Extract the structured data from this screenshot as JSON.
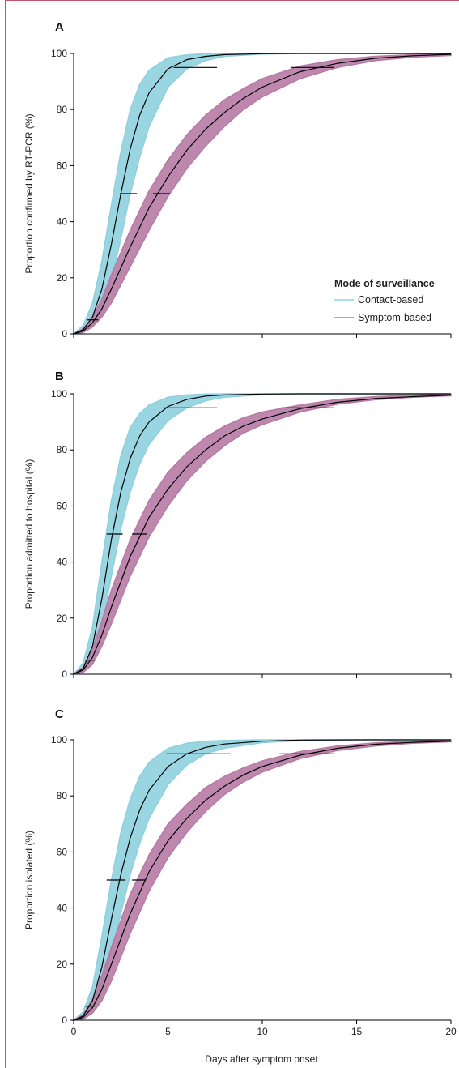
{
  "colors": {
    "contact": "#8fd0df",
    "symptom": "#b77aa4",
    "median": "#000000",
    "frame": "#c0566e"
  },
  "legend": {
    "title": "Mode of surveillance",
    "items": [
      {
        "label": "Contact-based",
        "color": "#8fd0df"
      },
      {
        "label": "Symptom-based",
        "color": "#b77aa4"
      }
    ],
    "placement": "lower-right of panel A"
  },
  "xaxis": {
    "label": "Days after symptom onset",
    "ticks": [
      "0",
      "5",
      "10",
      "15",
      "20"
    ],
    "range": [
      0,
      20
    ]
  },
  "chart_data": [
    {
      "type": "line",
      "panel_label": "A",
      "ylabel": "Proportion confirmed by RT-PCR (%)",
      "yticks": [
        "0",
        "20",
        "40",
        "60",
        "80",
        "100"
      ],
      "ylim": [
        0,
        100
      ],
      "xlim": [
        0,
        20
      ],
      "series": [
        {
          "name": "Contact-based",
          "median": {
            "x": [
              0,
              0.5,
              1,
              1.5,
              2,
              2.5,
              3,
              3.5,
              4,
              5,
              6,
              7,
              8,
              10,
              12,
              15,
              20
            ],
            "y": [
              0,
              1.5,
              6,
              16,
              32,
              50,
              66,
              78,
              86,
              94.5,
              97.8,
              99,
              99.6,
              99.9,
              100,
              100,
              100
            ]
          },
          "band_lower": [
            0,
            0.5,
            2.5,
            8,
            19,
            34,
            50,
            63,
            74,
            88,
            94.5,
            97.5,
            99,
            99.8,
            100,
            100,
            100
          ],
          "band_upper": [
            0,
            3,
            11,
            26,
            46,
            65,
            80,
            89,
            94,
            98.5,
            99.5,
            99.9,
            100,
            100,
            100,
            100,
            100
          ],
          "markers": [
            {
              "y": 5,
              "x_from": 0.7,
              "x_to": 1.3
            },
            {
              "y": 50,
              "x_from": 2.45,
              "x_to": 3.35
            },
            {
              "y": 95,
              "x_from": 5.3,
              "x_to": 7.6
            }
          ]
        },
        {
          "name": "Symptom-based",
          "median": {
            "x": [
              0,
              0.5,
              1,
              1.5,
              2,
              3,
              4,
              5,
              6,
              7,
              8,
              9,
              10,
              12,
              14,
              16,
              18,
              20
            ],
            "y": [
              0,
              1,
              4,
              9,
              16,
              31,
              45,
              56,
              65.5,
              73,
              79,
              84,
              88,
              93.5,
              96.5,
              98.3,
              99.2,
              99.7
            ]
          },
          "band_lower": [
            0,
            0.5,
            2.5,
            6,
            11,
            24,
            37,
            49,
            59,
            67,
            74,
            80,
            84.5,
            91,
            95,
            97.5,
            98.7,
            99.3
          ],
          "band_upper": [
            0,
            1.8,
            6,
            12.5,
            21,
            37,
            51,
            62,
            71,
            78,
            83.5,
            87.5,
            91,
            95.5,
            97.8,
            99,
            99.6,
            99.9
          ],
          "markers": [
            {
              "y": 50,
              "x_from": 4.2,
              "x_to": 5.1
            },
            {
              "y": 95,
              "x_from": 11.5,
              "x_to": 13.8
            }
          ]
        }
      ]
    },
    {
      "type": "line",
      "panel_label": "B",
      "ylabel": "Proportion admitted to hospital (%)",
      "yticks": [
        "0",
        "20",
        "40",
        "60",
        "80",
        "100"
      ],
      "ylim": [
        0,
        100
      ],
      "xlim": [
        0,
        20
      ],
      "series": [
        {
          "name": "Contact-based",
          "median": {
            "x": [
              0,
              0.5,
              1,
              1.5,
              2,
              2.5,
              3,
              3.5,
              4,
              5,
              6,
              7,
              8,
              10,
              12,
              15,
              20
            ],
            "y": [
              0,
              2,
              10,
              27,
              48,
              65,
              77,
              85,
              90,
              95.5,
              98,
              99.2,
              99.6,
              99.9,
              100,
              100,
              100
            ]
          },
          "band_lower": [
            0,
            0.8,
            5,
            17,
            35,
            52,
            65,
            75,
            82,
            90.5,
            95,
            97.5,
            98.8,
            99.7,
            100,
            100,
            100
          ],
          "band_upper": [
            0,
            4,
            17,
            40,
            62,
            78,
            88,
            93,
            96,
            98.8,
            99.6,
            99.9,
            100,
            100,
            100,
            100,
            100
          ],
          "markers": [
            {
              "y": 5,
              "x_from": 0.6,
              "x_to": 1.1
            },
            {
              "y": 50,
              "x_from": 1.75,
              "x_to": 2.6
            },
            {
              "y": 95,
              "x_from": 4.8,
              "x_to": 7.6
            }
          ]
        },
        {
          "name": "Symptom-based",
          "median": {
            "x": [
              0,
              0.5,
              1,
              1.5,
              2,
              3,
              4,
              5,
              6,
              7,
              8,
              9,
              10,
              12,
              14,
              16,
              18,
              20
            ],
            "y": [
              0,
              1.5,
              6,
              14,
              24,
              42,
              56,
              66,
              74,
              80,
              85,
              88.5,
              91,
              94.7,
              97,
              98.3,
              99,
              99.5
            ]
          },
          "band_lower": [
            0,
            0.6,
            3.5,
            10,
            18,
            35,
            49,
            60,
            69,
            76,
            81.5,
            86,
            89,
            93.5,
            96.3,
            97.9,
            98.8,
            99.3
          ],
          "band_upper": [
            0,
            2.5,
            9,
            19,
            30,
            48,
            62,
            72,
            79,
            84.5,
            88.5,
            91.5,
            93.5,
            96,
            98,
            99,
            99.5,
            99.8
          ],
          "markers": [
            {
              "y": 50,
              "x_from": 3.1,
              "x_to": 3.9
            },
            {
              "y": 95,
              "x_from": 11.0,
              "x_to": 13.8
            }
          ]
        }
      ]
    },
    {
      "type": "line",
      "panel_label": "C",
      "ylabel": "Proportion isolated (%)",
      "yticks": [
        "0",
        "20",
        "40",
        "60",
        "80",
        "100"
      ],
      "ylim": [
        0,
        100
      ],
      "xlim": [
        0,
        20
      ],
      "series": [
        {
          "name": "Contact-based",
          "median": {
            "x": [
              0,
              0.5,
              1,
              1.5,
              2,
              2.5,
              3,
              3.5,
              4,
              5,
              6,
              7,
              8,
              10,
              12,
              15,
              20
            ],
            "y": [
              0,
              1.5,
              7,
              19,
              36,
              52,
              65,
              75,
              82,
              90.5,
              95,
              97.3,
              98.5,
              99.5,
              99.9,
              100,
              100
            ]
          },
          "band_lower": [
            0,
            0.6,
            3.5,
            11,
            24,
            38,
            52,
            63,
            72,
            84,
            91,
            95,
            97,
            99,
            99.7,
            100,
            100
          ],
          "band_upper": [
            0,
            3,
            12,
            30,
            50,
            67,
            79,
            87,
            92,
            97,
            98.8,
            99.5,
            99.8,
            100,
            100,
            100,
            100
          ],
          "markers": [
            {
              "y": 5,
              "x_from": 0.6,
              "x_to": 1.1
            },
            {
              "y": 50,
              "x_from": 1.75,
              "x_to": 2.75
            },
            {
              "y": 95,
              "x_from": 4.9,
              "x_to": 8.3
            }
          ]
        },
        {
          "name": "Symptom-based",
          "median": {
            "x": [
              0,
              0.5,
              1,
              1.5,
              2,
              3,
              4,
              5,
              6,
              7,
              8,
              9,
              10,
              12,
              14,
              16,
              18,
              20
            ],
            "y": [
              0,
              1,
              4.5,
              11,
              20,
              38,
              53,
              64,
              72,
              78.5,
              83.5,
              87.5,
              90.5,
              94.5,
              97,
              98.4,
              99.1,
              99.5
            ]
          },
          "band_lower": [
            0,
            0.4,
            2.5,
            7,
            14,
            31,
            46,
            58,
            67,
            74.5,
            80.5,
            85,
            88.5,
            93.3,
            96.2,
            97.8,
            98.8,
            99.3
          ],
          "band_upper": [
            0,
            2,
            7.5,
            16,
            26,
            45,
            59,
            70,
            77,
            83,
            87,
            90,
            92.5,
            95.8,
            97.8,
            98.9,
            99.5,
            99.8
          ],
          "markers": [
            {
              "y": 50,
              "x_from": 3.1,
              "x_to": 3.8
            },
            {
              "y": 95,
              "x_from": 10.9,
              "x_to": 13.8
            }
          ]
        }
      ]
    }
  ]
}
